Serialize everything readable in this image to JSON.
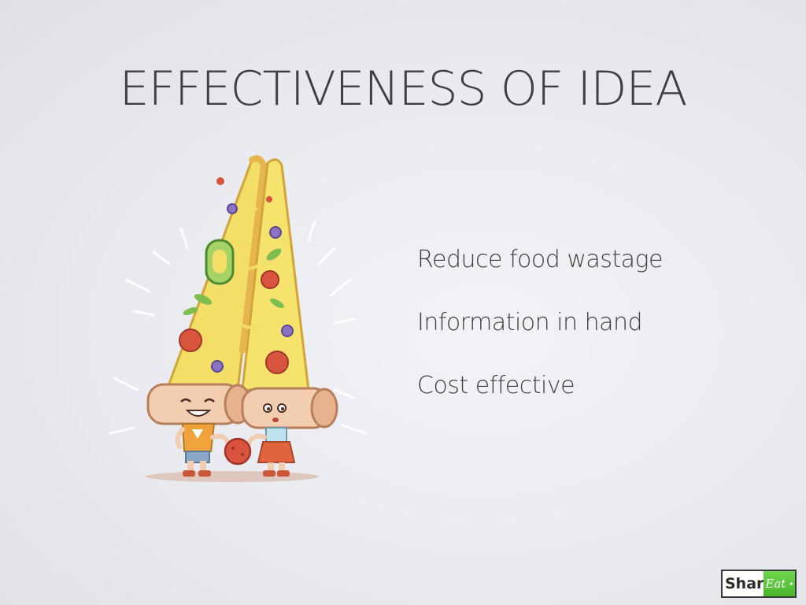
{
  "slide": {
    "title": "EFFECTIVENESS OF IDEA",
    "bullets": [
      "Reduce food wastage",
      "Information in hand",
      "Cost effective"
    ]
  },
  "illustration": {
    "subject": "two-pizza-slice-characters-icon"
  },
  "logo": {
    "left_text": "Shar",
    "right_text": "Eat",
    "accent_color": "#4cb82f"
  },
  "colors": {
    "background": "#eceef2",
    "text": "#3f3f3f"
  }
}
